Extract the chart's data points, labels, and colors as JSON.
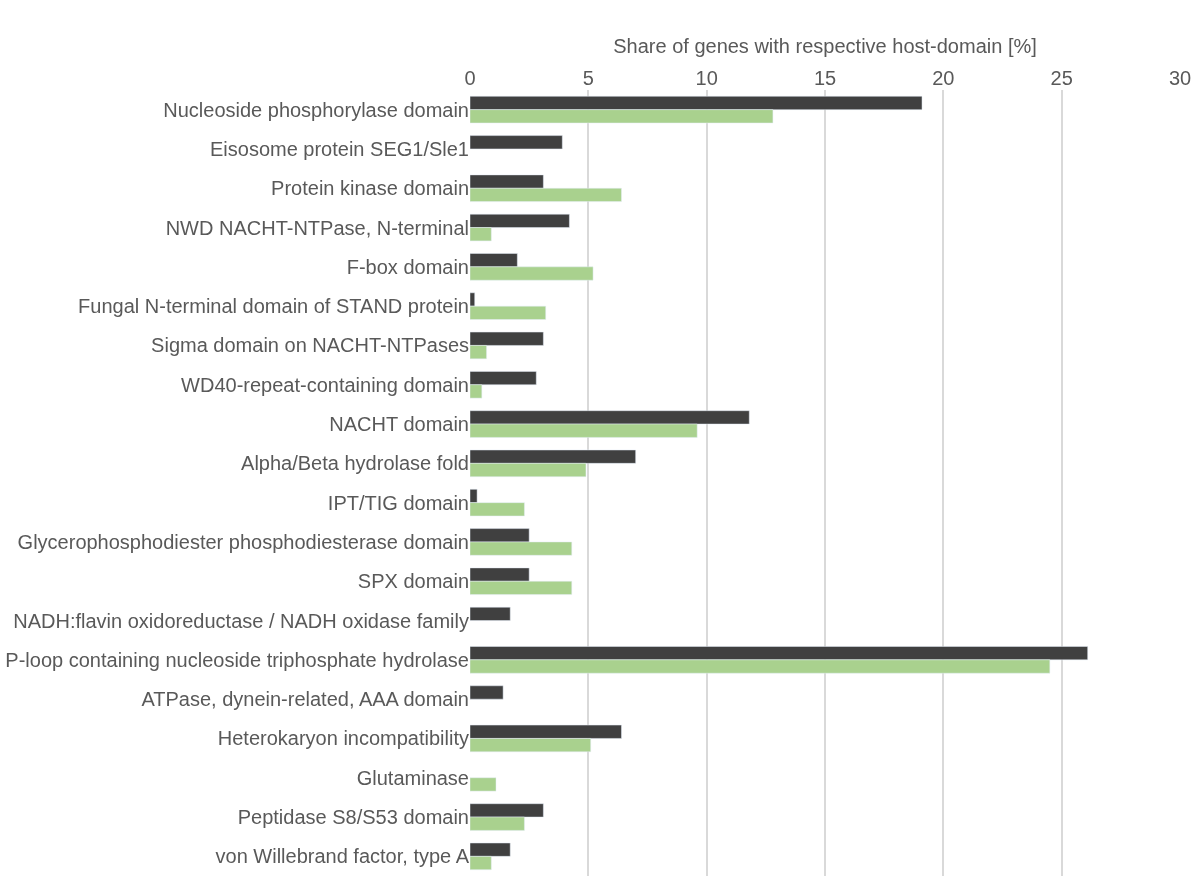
{
  "chart_data": {
    "type": "bar",
    "orientation": "horizontal",
    "xlabel": "Share of genes with respective host-domain [%]",
    "categories": [
      "Nucleoside phosphorylase domain",
      "Eisosome protein SEG1/Sle1",
      "Protein kinase domain",
      "NWD NACHT-NTPase, N-terminal",
      "F-box domain",
      "Fungal N-terminal domain of STAND protein",
      "Sigma domain on NACHT-NTPases",
      "WD40-repeat-containing domain",
      "NACHT domain",
      "Alpha/Beta hydrolase fold",
      "IPT/TIG domain",
      "Glycerophosphodiester phosphodiesterase domain",
      "SPX domain",
      "NADH:flavin oxidoreductase / NADH oxidase family",
      "P-loop containing nucleoside triphosphate hydrolase",
      "ATPase, dynein-related, AAA domain",
      "Heterokaryon incompatibility",
      "Glutaminase",
      "Peptidase S8/S53 domain",
      "von Willebrand factor, type A"
    ],
    "series": [
      {
        "color": "#404040",
        "values": [
          19.1,
          3.9,
          3.1,
          4.2,
          2.0,
          0.2,
          3.1,
          2.8,
          11.8,
          7.0,
          0.3,
          2.5,
          2.5,
          1.7,
          26.1,
          1.4,
          6.4,
          null,
          3.1,
          1.7
        ]
      },
      {
        "color": "#a9d18e",
        "values": [
          12.8,
          null,
          6.4,
          0.9,
          5.2,
          3.2,
          0.7,
          0.5,
          9.6,
          4.9,
          2.3,
          4.3,
          4.3,
          null,
          24.5,
          null,
          5.1,
          1.1,
          2.3,
          0.9
        ]
      }
    ],
    "xlim": [
      0,
      30
    ],
    "xticks": [
      0,
      5,
      10,
      15,
      20,
      25,
      30
    ],
    "grid": "x"
  }
}
